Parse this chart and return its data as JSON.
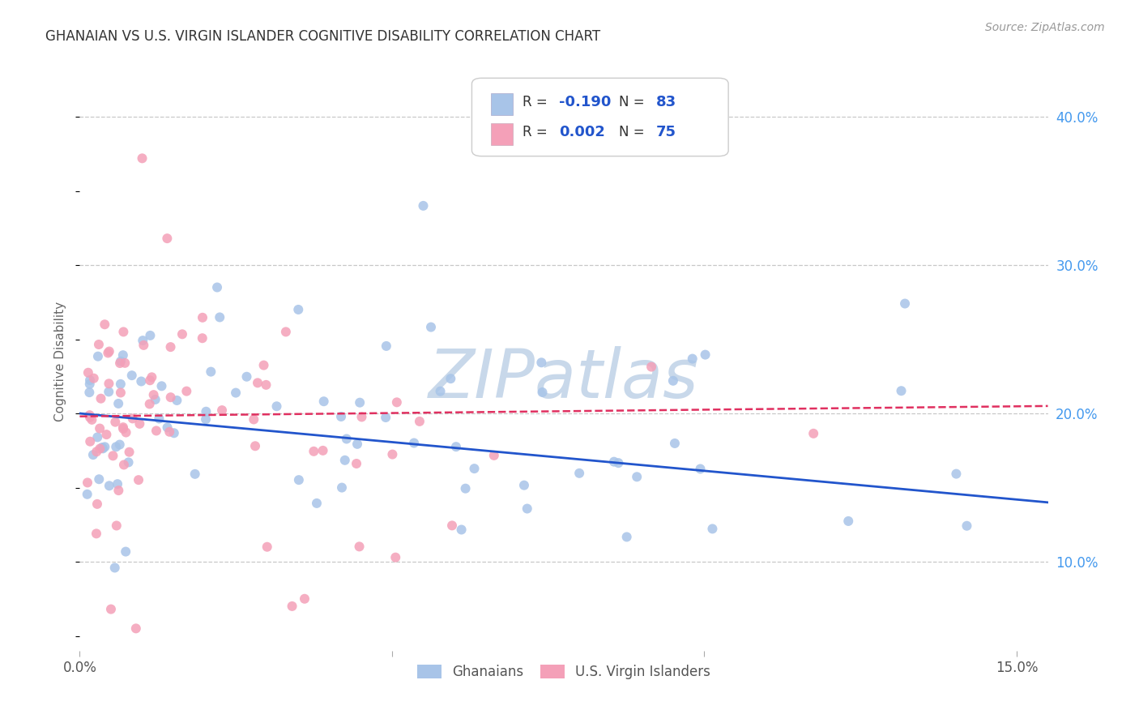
{
  "title": "GHANAIAN VS U.S. VIRGIN ISLANDER COGNITIVE DISABILITY CORRELATION CHART",
  "source_text": "Source: ZipAtlas.com",
  "ylabel": "Cognitive Disability",
  "xlim": [
    0.0,
    0.155
  ],
  "ylim": [
    0.04,
    0.43
  ],
  "ghanaian_color": "#a8c4e8",
  "virgin_color": "#f4a0b8",
  "trend_blue": "#2255cc",
  "trend_pink": "#e03060",
  "watermark": "ZIPatlas",
  "watermark_color": "#c8d8ea",
  "background_color": "#ffffff",
  "grid_color": "#c8c8c8",
  "ghanaians_label": "Ghanaians",
  "virgin_label": "U.S. Virgin Islanders",
  "legend_r1_text": "R = ",
  "legend_r1_val": "-0.190",
  "legend_n1_text": "N = ",
  "legend_n1_val": "83",
  "legend_r2_text": "R = ",
  "legend_r2_val": "0.002",
  "legend_n2_text": "N = ",
  "legend_n2_val": "75",
  "right_tick_color": "#4499ee",
  "title_color": "#333333",
  "source_color": "#999999"
}
